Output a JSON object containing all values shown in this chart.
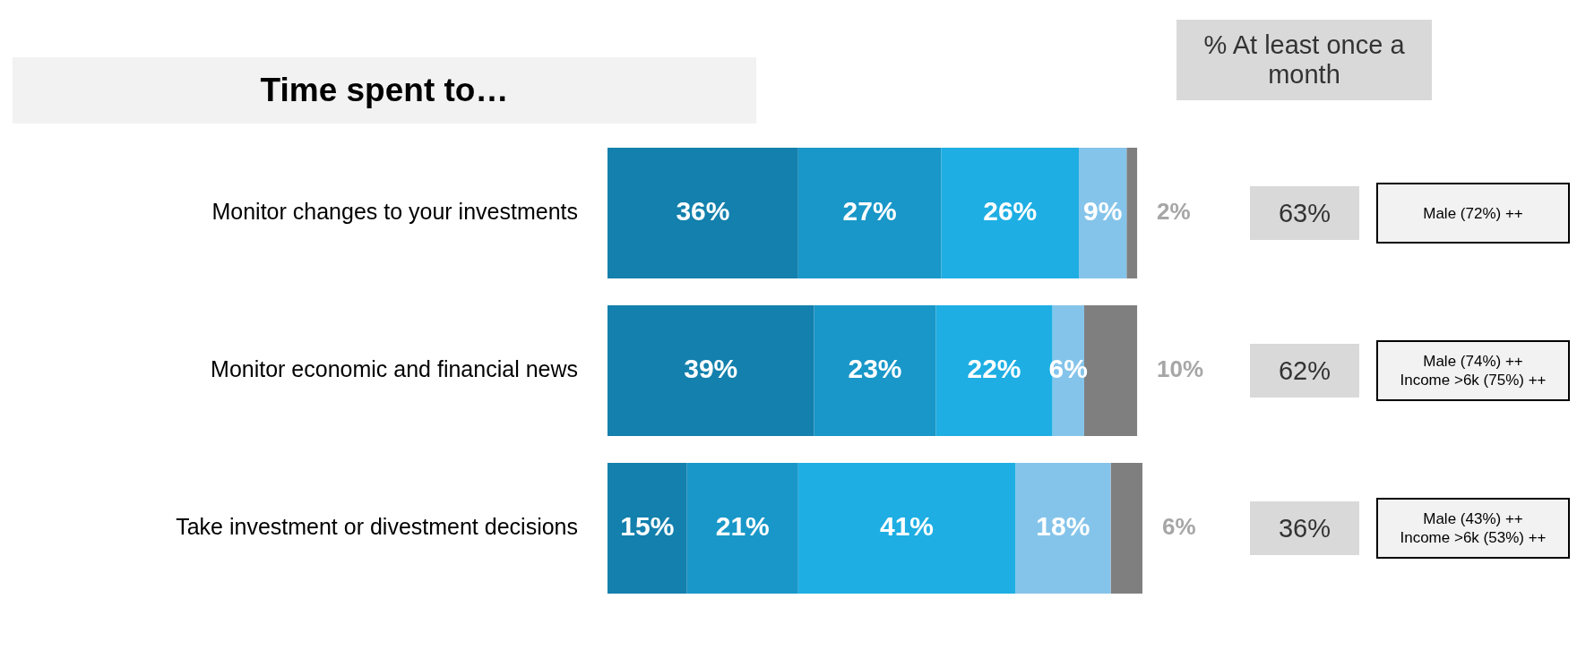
{
  "chart_data": {
    "type": "bar",
    "orientation": "horizontal",
    "stacked": true,
    "title": "Time spent to…",
    "categories": [
      "Monitor changes to your investments",
      "Monitor economic and financial news",
      "Take investment or divestment decisions"
    ],
    "series": [
      {
        "color": "#1380ad",
        "values": [
          36,
          39,
          15
        ],
        "value_labels": [
          "36%",
          "39%",
          "15%"
        ]
      },
      {
        "color": "#1897c8",
        "values": [
          27,
          23,
          21
        ],
        "value_labels": [
          "27%",
          "23%",
          "21%"
        ]
      },
      {
        "color": "#1eaee3",
        "values": [
          26,
          22,
          41
        ],
        "value_labels": [
          "26%",
          "22%",
          "41%"
        ]
      },
      {
        "color": "#85c4ea",
        "values": [
          9,
          6,
          18
        ],
        "value_labels": [
          "9%",
          "6%",
          "18%"
        ]
      },
      {
        "color": "#7f7f7f",
        "values": [
          2,
          10,
          6
        ],
        "value_labels": [
          "2%",
          "10%",
          "6%"
        ]
      }
    ],
    "annotations": [
      "% At least once a month",
      "63%",
      "Male (72%) ++",
      "62%",
      "Male (74%) ++\nIncome >6k (75%) ++",
      "36%",
      "Male (43%) ++\nIncome >6k (53%) ++"
    ],
    "legend": false,
    "grid": false
  }
}
